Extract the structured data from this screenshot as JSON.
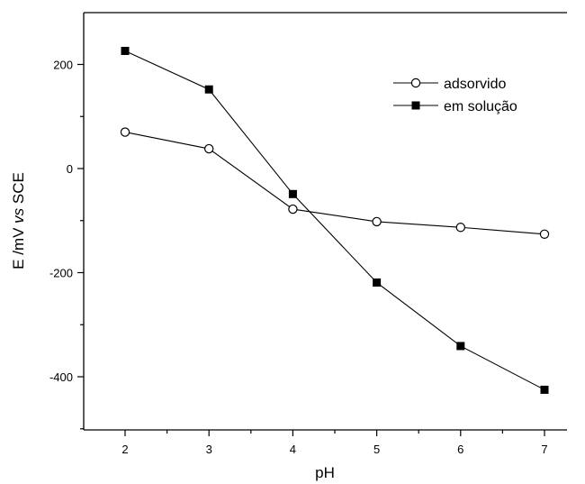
{
  "chart_data": {
    "type": "line",
    "xlabel": "pH",
    "ylabel_parts": {
      "pre": "E /mV ",
      "italic": "vs",
      "post": " SCE"
    },
    "x_ticks": [
      2,
      3,
      4,
      5,
      6,
      7
    ],
    "y_ticks": [
      200,
      0,
      -200,
      -400
    ],
    "y_tick_labels": [
      "200",
      "0",
      "-200",
      "-400"
    ],
    "xlim": [
      1.5,
      7.5
    ],
    "ylim": [
      -500,
      300
    ],
    "grid": false,
    "legend_position": "top-right",
    "series": [
      {
        "name": "adsorvido",
        "marker": "open-circle",
        "color": "#000000",
        "x": [
          2,
          3,
          4,
          5,
          6,
          7
        ],
        "y": [
          70,
          38,
          -78,
          -102,
          -113,
          -126
        ]
      },
      {
        "name": "em solução",
        "marker": "filled-square",
        "color": "#000000",
        "x": [
          2,
          3,
          4,
          5,
          6,
          7
        ],
        "y": [
          226,
          152,
          -49,
          -219,
          -341,
          -425
        ]
      }
    ]
  }
}
